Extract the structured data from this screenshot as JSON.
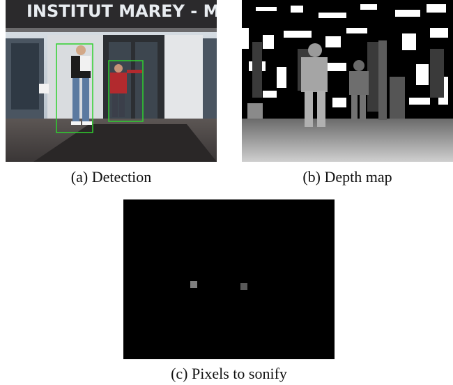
{
  "figure": {
    "panels": [
      {
        "id": "a",
        "caption": "(a) Detection",
        "sign_text": "INSTITUT MAREY - MAISON D",
        "detection_box_color": "#2fd12f"
      },
      {
        "id": "b",
        "caption": "(b) Depth map"
      },
      {
        "id": "c",
        "caption": "(c) Pixels to sonify",
        "pixels": [
          {
            "gray": "#7f7f7f"
          },
          {
            "gray": "#595959"
          }
        ]
      }
    ]
  }
}
